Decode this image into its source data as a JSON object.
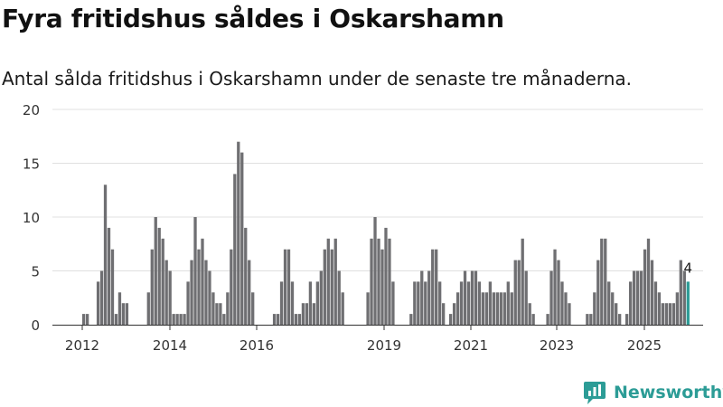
{
  "header": {
    "title": "Fyra fritidshus såldes i Oskarshamn",
    "subtitle": "Antal sålda fritidshus i Oskarshamn under de senaste tre månaderna."
  },
  "brand": {
    "name": "Newsworthy",
    "color": "#2c9c96"
  },
  "chart_data": {
    "type": "bar",
    "title": "",
    "xlabel": "",
    "ylabel": "",
    "ylim": [
      0,
      20
    ],
    "yticks": [
      0,
      5,
      10,
      15,
      20
    ],
    "xticks": [
      "2012",
      "2014",
      "2016",
      "2019",
      "2021",
      "2023",
      "2025"
    ],
    "grid": true,
    "bar_color": "#6f6f72",
    "highlight_color": "#2c9c96",
    "annotation": {
      "text": "4",
      "target": "last bar"
    },
    "series": [
      {
        "values": [
          1,
          1,
          0,
          0,
          4,
          5,
          13,
          9,
          7,
          1,
          3,
          2,
          2,
          0,
          0,
          0,
          0,
          0,
          3,
          7,
          10,
          9,
          8,
          6,
          5,
          1,
          1,
          1,
          1,
          4,
          6,
          10,
          7,
          8,
          6,
          5,
          3,
          2,
          2,
          1,
          3,
          7,
          14,
          17,
          16,
          9,
          6,
          3,
          0,
          0,
          0,
          0,
          0,
          1,
          1,
          4,
          7,
          7,
          4,
          1,
          1,
          2,
          2,
          4,
          2,
          4,
          5,
          7,
          8,
          7,
          8,
          5,
          3,
          0,
          0,
          0,
          0,
          0,
          0,
          3,
          8,
          10,
          8,
          7,
          9,
          8,
          4,
          0,
          0,
          0,
          0,
          1,
          4,
          4,
          5,
          4,
          5,
          7,
          7,
          4,
          2,
          0,
          1,
          2,
          3,
          4,
          5,
          4,
          5,
          5,
          4,
          3,
          3,
          4,
          3,
          3,
          3,
          3,
          4,
          3,
          6,
          6,
          8,
          5,
          2,
          1,
          0,
          0,
          0,
          1,
          5,
          7,
          6,
          4,
          3,
          2,
          0,
          0,
          0,
          0,
          1,
          1,
          3,
          6,
          8,
          8,
          4,
          3,
          2,
          1,
          0,
          1,
          4,
          5,
          5,
          5,
          7,
          8,
          6,
          4,
          3,
          2,
          2,
          2,
          2,
          3,
          6,
          5,
          4
        ]
      }
    ]
  }
}
